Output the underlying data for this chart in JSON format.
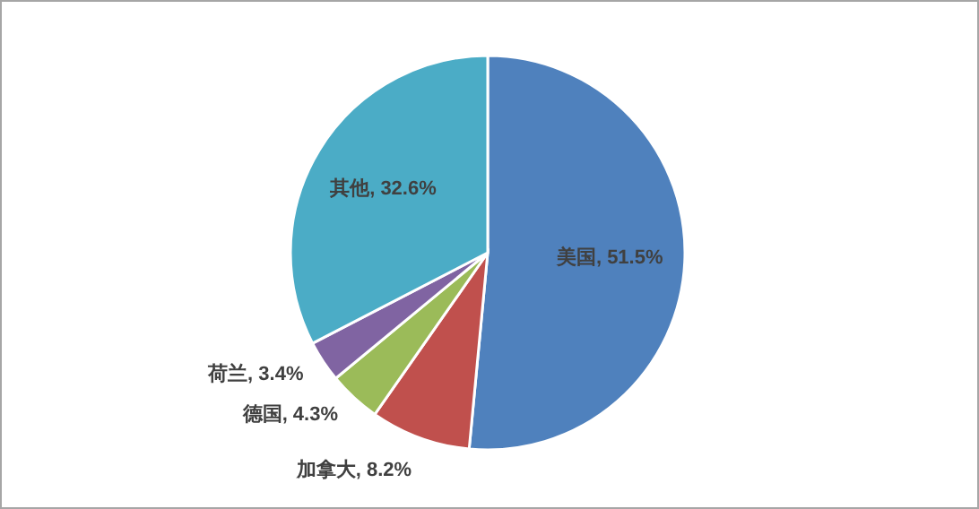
{
  "chart_data": {
    "type": "pie",
    "categories": [
      "美国",
      "加拿大",
      "德国",
      "荷兰",
      "其他"
    ],
    "values": [
      51.5,
      8.2,
      4.3,
      3.4,
      32.6
    ],
    "colors": [
      "#4f81bd",
      "#c0504d",
      "#9bbb59",
      "#8064a2",
      "#4bacc6"
    ],
    "value_labels": [
      "51.5%",
      "8.2%",
      "4.3%",
      "3.4%",
      "32.6%"
    ],
    "legend": false
  }
}
